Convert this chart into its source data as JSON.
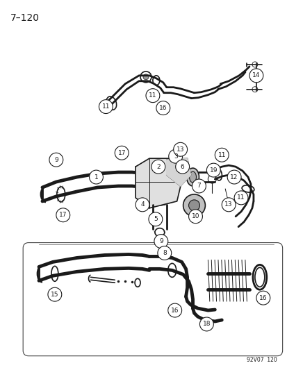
{
  "title": "7–120",
  "watermark": "92V07  120",
  "bg": "#ffffff",
  "lc": "#1a1a1a",
  "figsize": [
    4.14,
    5.33
  ],
  "dpi": 100
}
